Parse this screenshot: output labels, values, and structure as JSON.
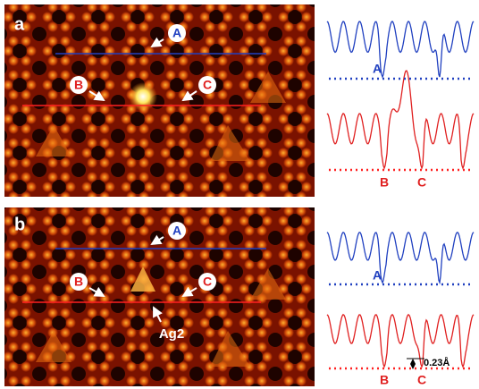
{
  "panels": [
    {
      "label": "a",
      "image_labels": [
        "A",
        "B",
        "C"
      ],
      "profile_labels": [
        "A",
        "B",
        "C"
      ]
    },
    {
      "label": "b",
      "image_labels": [
        "A",
        "B",
        "C"
      ],
      "annotation": "Ag2",
      "profile_labels": [
        "A",
        "B",
        "C"
      ],
      "step": "0.23Å"
    }
  ]
}
